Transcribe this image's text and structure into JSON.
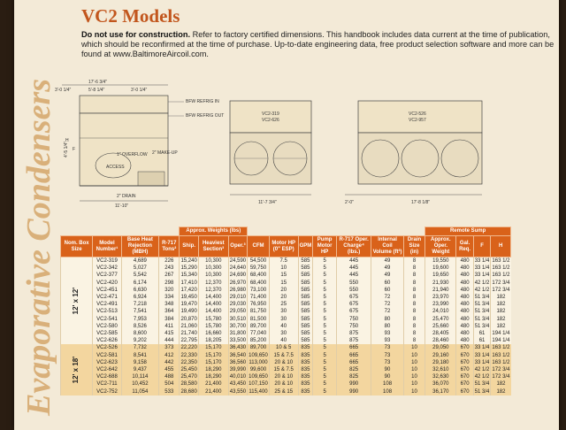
{
  "title": "VC2 Models",
  "note_bold": "Do not use for construction.",
  "note_text": " Refer to factory certified dimensions. This handbook includes data current at the time of publication, which should be reconfirmed at the time of purchase. Up-to-date engineering data, free product selection software and more can be found at www.BaltimoreAircoil.com.",
  "side_heading": "Evaporative Condensers",
  "drawings": {
    "left": {
      "top_dim": "17'-6 3/4\"",
      "dims": [
        "3'-0 1/4\"",
        "5'-8 1/4\"",
        "3'-0 1/4\""
      ],
      "bfw_in": "BFW REFRIG IN",
      "bfw_out": "BFW REFRIG OUT",
      "h": "H",
      "f": "F",
      "side_dim": "4'-5 1/4\"",
      "overflow": "1\" OVERFLOW",
      "makeup": "2\" MAKE-UP",
      "access": "ACCESS",
      "drain": "2\" DRAIN",
      "bottom_dim": "11'-10\""
    },
    "middle": {
      "models": [
        "VC2-319",
        "VC2-626"
      ],
      "dim": "11'-7 3/4\""
    },
    "right": {
      "models": [
        "VC2-526",
        "VC2-957"
      ],
      "dim_a": "2'-0\"",
      "dim_b": "17'-8 1/8\""
    }
  },
  "table": {
    "group_headers": {
      "weights": "Approx. Weights (lbs)",
      "sump": "Remote Sump"
    },
    "headers": [
      "Nom. Box Size",
      "Model Number¹",
      "Base Heat Rejection (MBH)",
      "R-717 Tons²",
      "Ship.",
      "Heaviest Section³",
      "Oper.³",
      "CFM",
      "Motor HP (0\" ESP)",
      "GPM",
      "Pump Motor HP",
      "R-717 Oper. Charge⁴ (lbs.)",
      "Internal Coil Volume (ft³)",
      "Drain Size (in)",
      "Approx. Oper. Weight",
      "Gal. Req.",
      "F",
      "H"
    ],
    "groups": [
      {
        "box": "12' x 12'",
        "rows": [
          [
            "VC2-319",
            "4,689",
            "226",
            "15,240",
            "10,300",
            "24,590",
            "54,500",
            "7.5",
            "585",
            "5",
            "445",
            "49",
            "8",
            "19,550",
            "480",
            "33 1/4",
            "163 1/2"
          ],
          [
            "VC2-342",
            "5,027",
            "243",
            "15,290",
            "10,300",
            "24,640",
            "59,750",
            "10",
            "585",
            "5",
            "445",
            "49",
            "8",
            "19,600",
            "480",
            "33 1/4",
            "163 1/2"
          ],
          [
            "VC2-377",
            "5,542",
            "267",
            "15,340",
            "10,300",
            "24,690",
            "68,400",
            "15",
            "585",
            "5",
            "445",
            "49",
            "8",
            "19,650",
            "480",
            "33 1/4",
            "163 1/2"
          ],
          [
            "VC2-420",
            "6,174",
            "298",
            "17,410",
            "12,370",
            "26,970",
            "68,400",
            "15",
            "585",
            "5",
            "550",
            "60",
            "8",
            "21,930",
            "480",
            "42 1/2",
            "172 3/4"
          ],
          [
            "VC2-451",
            "6,630",
            "320",
            "17,420",
            "12,370",
            "26,980",
            "73,100",
            "20",
            "585",
            "5",
            "550",
            "60",
            "8",
            "21,940",
            "480",
            "42 1/2",
            "172 3/4"
          ],
          [
            "VC2-471",
            "6,924",
            "334",
            "19,450",
            "14,400",
            "29,010",
            "71,400",
            "20",
            "585",
            "5",
            "675",
            "72",
            "8",
            "23,970",
            "480",
            "51 3/4",
            "182"
          ],
          [
            "VC2-491",
            "7,218",
            "348",
            "19,470",
            "14,400",
            "29,030",
            "76,950",
            "25",
            "585",
            "5",
            "675",
            "72",
            "8",
            "23,990",
            "480",
            "51 3/4",
            "182"
          ],
          [
            "VC2-513",
            "7,541",
            "364",
            "19,490",
            "14,400",
            "29,050",
            "81,750",
            "30",
            "585",
            "5",
            "675",
            "72",
            "8",
            "24,010",
            "480",
            "51 3/4",
            "182"
          ],
          [
            "VC2-541",
            "7,953",
            "384",
            "20,870",
            "15,780",
            "30,510",
            "81,500",
            "30",
            "585",
            "5",
            "750",
            "80",
            "8",
            "25,470",
            "480",
            "51 3/4",
            "182"
          ],
          [
            "VC2-580",
            "8,526",
            "411",
            "21,060",
            "15,780",
            "30,700",
            "89,700",
            "40",
            "585",
            "5",
            "750",
            "80",
            "8",
            "25,660",
            "480",
            "51 3/4",
            "182"
          ],
          [
            "VC2-585",
            "8,600",
            "415",
            "21,740",
            "16,660",
            "31,800",
            "77,040",
            "30",
            "585",
            "5",
            "875",
            "93",
            "8",
            "28,405",
            "480",
            "61",
            "194 1/4"
          ],
          [
            "VC2-626",
            "9,202",
            "444",
            "22,795",
            "18,205",
            "33,500",
            "85,200",
            "40",
            "585",
            "5",
            "875",
            "93",
            "8",
            "28,460",
            "480",
            "61",
            "194 1/4"
          ]
        ]
      },
      {
        "box": "12' x 18'",
        "rows": [
          [
            "VC2-526",
            "7,732",
            "373",
            "22,220",
            "15,170",
            "36,430",
            "89,700",
            "10 & 5",
            "835",
            "5",
            "665",
            "73",
            "10",
            "29,050",
            "670",
            "33 1/4",
            "163 1/2"
          ],
          [
            "VC2-581",
            "8,541",
            "412",
            "22,330",
            "15,170",
            "36,540",
            "109,650",
            "15 & 7.5",
            "835",
            "5",
            "665",
            "73",
            "10",
            "29,160",
            "670",
            "33 1/4",
            "163 1/2"
          ],
          [
            "VC2-623",
            "9,158",
            "442",
            "22,350",
            "15,170",
            "36,560",
            "113,000",
            "20 & 10",
            "835",
            "5",
            "665",
            "73",
            "10",
            "29,180",
            "670",
            "33 1/4",
            "163 1/2"
          ],
          [
            "VC2-642",
            "9,437",
            "455",
            "25,450",
            "18,290",
            "39,990",
            "99,600",
            "15 & 7.5",
            "835",
            "5",
            "825",
            "90",
            "10",
            "32,610",
            "670",
            "42 1/2",
            "172 3/4"
          ],
          [
            "VC2-688",
            "10,114",
            "488",
            "25,470",
            "18,290",
            "40,010",
            "109,650",
            "20 & 10",
            "835",
            "5",
            "825",
            "90",
            "10",
            "32,630",
            "670",
            "42 1/2",
            "172 3/4"
          ],
          [
            "VC2-711",
            "10,452",
            "504",
            "28,580",
            "21,400",
            "43,450",
            "107,150",
            "20 & 10",
            "835",
            "5",
            "990",
            "108",
            "10",
            "36,070",
            "670",
            "51 3/4",
            "182"
          ],
          [
            "VC2-752",
            "11,054",
            "533",
            "28,680",
            "21,400",
            "43,550",
            "115,400",
            "25 & 15",
            "835",
            "5",
            "990",
            "108",
            "10",
            "36,170",
            "670",
            "51 3/4",
            "182"
          ]
        ]
      }
    ]
  },
  "colors": {
    "accent": "#c2561d",
    "header": "#d9621a",
    "band": "#f3d69f",
    "page": "#f3ead7"
  }
}
